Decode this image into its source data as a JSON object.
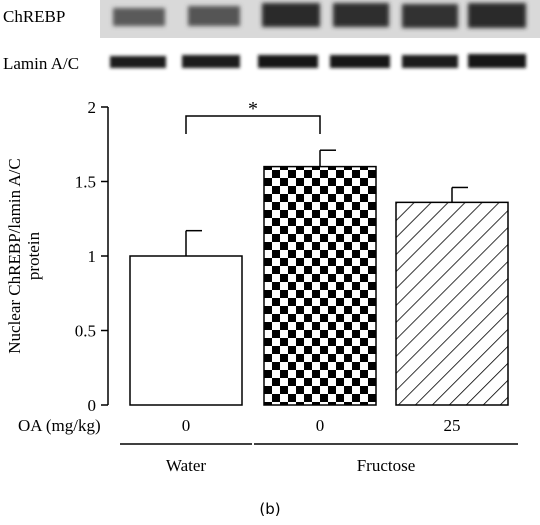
{
  "blots": {
    "row1_label": "ChREBP",
    "row2_label": "Lamin A/C",
    "lanes": 6
  },
  "chart_data": {
    "type": "bar",
    "ylabel": "Nuclear ChREBP/lamin A/C protein",
    "ylabel_lines": [
      "Nuclear ChREBP/lamin A/C",
      "protein"
    ],
    "ylim": [
      0,
      2
    ],
    "yticks": [
      "0",
      "0.5",
      "1",
      "1.5",
      "2"
    ],
    "ytick_values": [
      0,
      0.5,
      1,
      1.5,
      2
    ],
    "x_row_label": "OA (mg/kg)",
    "categories": [
      "0",
      "0",
      "25"
    ],
    "values": [
      1.0,
      1.6,
      1.36
    ],
    "errors": [
      0.17,
      0.11,
      0.1
    ],
    "fills": [
      "white",
      "checkerboard",
      "diagonal-hatch"
    ],
    "groups": [
      {
        "label": "Water",
        "members": [
          0
        ]
      },
      {
        "label": "Fructose",
        "members": [
          1,
          2
        ]
      }
    ],
    "significance": {
      "between": [
        0,
        1
      ],
      "label": "*"
    }
  },
  "caption": "(b)"
}
